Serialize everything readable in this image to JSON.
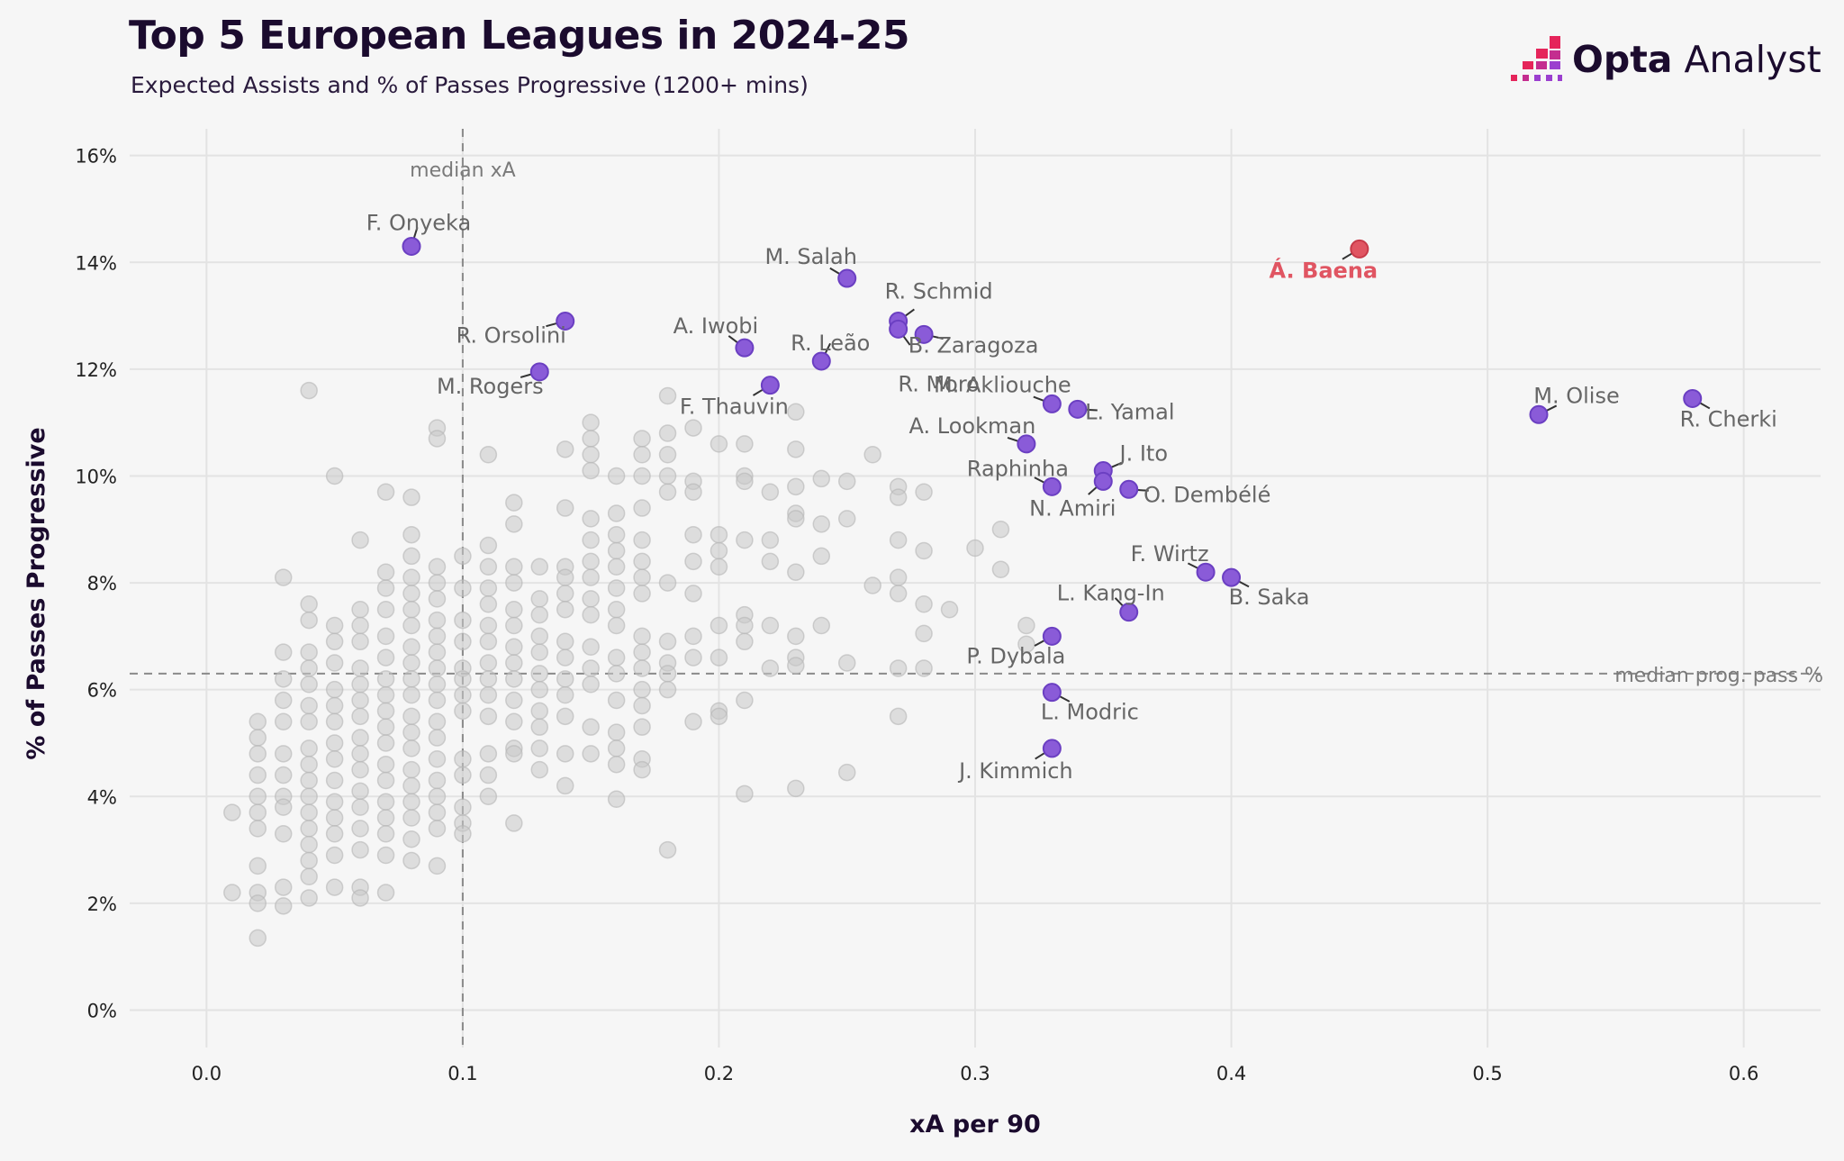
{
  "header": {
    "title": "Top 5 European Leagues in 2024-25",
    "subtitle": "Expected Assists and % of Passes Progressive (1200+ mins)",
    "logo_bold": "Opta",
    "logo_light": " Analyst"
  },
  "colors": {
    "background": "#f6f6f6",
    "highlight": "#8a5bd8",
    "highlight_edge": "#6b3fc2",
    "featured": "#e05562",
    "featured_edge": "#c73a49",
    "other": "#c8c8c8",
    "grid": "#e3e3e3",
    "logo_accent": "#e5245a",
    "logo_secondary": "#c42d8f"
  },
  "chart_data": {
    "type": "scatter",
    "title": "Top 5 European Leagues in 2024-25",
    "subtitle": "Expected Assists and % of Passes Progressive (1200+ mins)",
    "xlabel": "xA per 90",
    "ylabel": "% of Passes Progressive",
    "xlim": [
      -0.03,
      0.63
    ],
    "ylim": [
      -0.7,
      16.5
    ],
    "xticks": [
      0.0,
      0.1,
      0.2,
      0.3,
      0.4,
      0.5,
      0.6
    ],
    "xtick_labels": [
      "0.0",
      "0.1",
      "0.2",
      "0.3",
      "0.4",
      "0.5",
      "0.6"
    ],
    "yticks": [
      0,
      2,
      4,
      6,
      8,
      10,
      12,
      14,
      16
    ],
    "ytick_labels": [
      "0%",
      "2%",
      "4%",
      "6%",
      "8%",
      "10%",
      "12%",
      "14%",
      "16%"
    ],
    "grid": true,
    "reference_lines": [
      {
        "axis": "x",
        "value": 0.1,
        "label": "median xA"
      },
      {
        "axis": "y",
        "value": 6.3,
        "label": "median prog. pass %"
      }
    ],
    "featured": [
      {
        "name": "Á. Baena",
        "x": 0.45,
        "y": 14.25
      }
    ],
    "highlighted": [
      {
        "name": "F. Onyeka",
        "x": 0.08,
        "y": 14.3
      },
      {
        "name": "M. Salah",
        "x": 0.25,
        "y": 13.7
      },
      {
        "name": "R. Orsolini",
        "x": 0.14,
        "y": 12.9
      },
      {
        "name": "R. Schmid",
        "x": 0.27,
        "y": 12.9
      },
      {
        "name": "A. Iwobi",
        "x": 0.21,
        "y": 12.4
      },
      {
        "name": "B. Zaragoza",
        "x": 0.28,
        "y": 12.65
      },
      {
        "name": "R. Leão",
        "x": 0.24,
        "y": 12.15
      },
      {
        "name": "M. Rogers",
        "x": 0.13,
        "y": 11.95
      },
      {
        "name": "R. Moro",
        "x": 0.27,
        "y": 12.75
      },
      {
        "name": "F. Thauvin",
        "x": 0.22,
        "y": 11.7
      },
      {
        "name": "M. Akliouche",
        "x": 0.33,
        "y": 11.35
      },
      {
        "name": "L. Yamal",
        "x": 0.34,
        "y": 11.25
      },
      {
        "name": "M. Olise",
        "x": 0.52,
        "y": 11.15
      },
      {
        "name": "R. Cherki",
        "x": 0.58,
        "y": 11.45
      },
      {
        "name": "A. Lookman",
        "x": 0.32,
        "y": 10.6
      },
      {
        "name": "J. Ito",
        "x": 0.35,
        "y": 10.1
      },
      {
        "name": "Raphinha",
        "x": 0.33,
        "y": 9.8
      },
      {
        "name": "N. Amiri",
        "x": 0.35,
        "y": 9.9
      },
      {
        "name": "O. Dembélé",
        "x": 0.36,
        "y": 9.75
      },
      {
        "name": "F. Wirtz",
        "x": 0.39,
        "y": 8.2
      },
      {
        "name": "B. Saka",
        "x": 0.4,
        "y": 8.1
      },
      {
        "name": "L. Kang-In",
        "x": 0.36,
        "y": 7.45
      },
      {
        "name": "P. Dybala",
        "x": 0.33,
        "y": 7.0
      },
      {
        "name": "L. Modric",
        "x": 0.33,
        "y": 5.95
      },
      {
        "name": "J. Kimmich",
        "x": 0.33,
        "y": 4.9
      }
    ],
    "others": [
      [
        0.01,
        3.7
      ],
      [
        0.01,
        2.2
      ],
      [
        0.02,
        5.4
      ],
      [
        0.02,
        5.1
      ],
      [
        0.02,
        4.8
      ],
      [
        0.02,
        4.4
      ],
      [
        0.02,
        4.0
      ],
      [
        0.02,
        3.7
      ],
      [
        0.02,
        3.4
      ],
      [
        0.02,
        2.7
      ],
      [
        0.02,
        2.2
      ],
      [
        0.02,
        2.0
      ],
      [
        0.02,
        1.35
      ],
      [
        0.03,
        8.1
      ],
      [
        0.03,
        6.7
      ],
      [
        0.03,
        6.2
      ],
      [
        0.03,
        5.8
      ],
      [
        0.03,
        5.4
      ],
      [
        0.03,
        4.8
      ],
      [
        0.03,
        4.4
      ],
      [
        0.03,
        4.0
      ],
      [
        0.03,
        3.8
      ],
      [
        0.03,
        3.3
      ],
      [
        0.03,
        2.3
      ],
      [
        0.03,
        1.95
      ],
      [
        0.04,
        11.6
      ],
      [
        0.04,
        7.6
      ],
      [
        0.04,
        7.3
      ],
      [
        0.04,
        6.7
      ],
      [
        0.04,
        6.4
      ],
      [
        0.04,
        6.1
      ],
      [
        0.04,
        5.7
      ],
      [
        0.04,
        5.4
      ],
      [
        0.04,
        4.9
      ],
      [
        0.04,
        4.6
      ],
      [
        0.04,
        4.3
      ],
      [
        0.04,
        4.0
      ],
      [
        0.04,
        3.7
      ],
      [
        0.04,
        3.4
      ],
      [
        0.04,
        3.1
      ],
      [
        0.04,
        2.8
      ],
      [
        0.04,
        2.5
      ],
      [
        0.04,
        2.1
      ],
      [
        0.05,
        10.0
      ],
      [
        0.05,
        7.2
      ],
      [
        0.05,
        6.9
      ],
      [
        0.05,
        6.5
      ],
      [
        0.05,
        6.0
      ],
      [
        0.05,
        5.7
      ],
      [
        0.05,
        5.4
      ],
      [
        0.05,
        5.0
      ],
      [
        0.05,
        4.7
      ],
      [
        0.05,
        4.3
      ],
      [
        0.05,
        3.9
      ],
      [
        0.05,
        3.6
      ],
      [
        0.05,
        3.3
      ],
      [
        0.05,
        2.9
      ],
      [
        0.05,
        2.3
      ],
      [
        0.06,
        8.8
      ],
      [
        0.06,
        7.5
      ],
      [
        0.06,
        7.2
      ],
      [
        0.06,
        6.9
      ],
      [
        0.06,
        6.4
      ],
      [
        0.06,
        6.1
      ],
      [
        0.06,
        5.8
      ],
      [
        0.06,
        5.5
      ],
      [
        0.06,
        5.1
      ],
      [
        0.06,
        4.8
      ],
      [
        0.06,
        4.5
      ],
      [
        0.06,
        4.1
      ],
      [
        0.06,
        3.8
      ],
      [
        0.06,
        3.4
      ],
      [
        0.06,
        3.0
      ],
      [
        0.06,
        2.3
      ],
      [
        0.06,
        2.1
      ],
      [
        0.07,
        9.7
      ],
      [
        0.07,
        8.2
      ],
      [
        0.07,
        7.9
      ],
      [
        0.07,
        7.5
      ],
      [
        0.07,
        7.0
      ],
      [
        0.07,
        6.6
      ],
      [
        0.07,
        6.2
      ],
      [
        0.07,
        5.9
      ],
      [
        0.07,
        5.6
      ],
      [
        0.07,
        5.3
      ],
      [
        0.07,
        5.0
      ],
      [
        0.07,
        4.6
      ],
      [
        0.07,
        4.3
      ],
      [
        0.07,
        3.9
      ],
      [
        0.07,
        3.6
      ],
      [
        0.07,
        3.3
      ],
      [
        0.07,
        2.9
      ],
      [
        0.07,
        2.2
      ],
      [
        0.08,
        9.6
      ],
      [
        0.08,
        8.9
      ],
      [
        0.08,
        8.5
      ],
      [
        0.08,
        8.1
      ],
      [
        0.08,
        7.8
      ],
      [
        0.08,
        7.5
      ],
      [
        0.08,
        7.2
      ],
      [
        0.08,
        6.8
      ],
      [
        0.08,
        6.5
      ],
      [
        0.08,
        6.2
      ],
      [
        0.08,
        5.9
      ],
      [
        0.08,
        5.5
      ],
      [
        0.08,
        5.2
      ],
      [
        0.08,
        4.9
      ],
      [
        0.08,
        4.5
      ],
      [
        0.08,
        4.2
      ],
      [
        0.08,
        3.9
      ],
      [
        0.08,
        3.6
      ],
      [
        0.08,
        3.2
      ],
      [
        0.08,
        2.8
      ],
      [
        0.09,
        10.9
      ],
      [
        0.09,
        10.7
      ],
      [
        0.09,
        8.3
      ],
      [
        0.09,
        8.0
      ],
      [
        0.09,
        7.7
      ],
      [
        0.09,
        7.3
      ],
      [
        0.09,
        7.0
      ],
      [
        0.09,
        6.7
      ],
      [
        0.09,
        6.4
      ],
      [
        0.09,
        6.1
      ],
      [
        0.09,
        5.8
      ],
      [
        0.09,
        5.4
      ],
      [
        0.09,
        5.1
      ],
      [
        0.09,
        4.7
      ],
      [
        0.09,
        4.3
      ],
      [
        0.09,
        4.0
      ],
      [
        0.09,
        3.7
      ],
      [
        0.09,
        3.4
      ],
      [
        0.09,
        2.7
      ],
      [
        0.1,
        8.5
      ],
      [
        0.1,
        7.9
      ],
      [
        0.1,
        7.3
      ],
      [
        0.1,
        6.9
      ],
      [
        0.1,
        6.4
      ],
      [
        0.1,
        6.2
      ],
      [
        0.1,
        5.9
      ],
      [
        0.1,
        5.6
      ],
      [
        0.1,
        4.7
      ],
      [
        0.1,
        4.4
      ],
      [
        0.1,
        3.8
      ],
      [
        0.1,
        3.5
      ],
      [
        0.1,
        3.3
      ],
      [
        0.11,
        10.4
      ],
      [
        0.11,
        8.7
      ],
      [
        0.11,
        8.3
      ],
      [
        0.11,
        7.9
      ],
      [
        0.11,
        7.6
      ],
      [
        0.11,
        7.2
      ],
      [
        0.11,
        6.9
      ],
      [
        0.11,
        6.5
      ],
      [
        0.11,
        6.2
      ],
      [
        0.11,
        5.9
      ],
      [
        0.11,
        5.5
      ],
      [
        0.11,
        4.8
      ],
      [
        0.11,
        4.4
      ],
      [
        0.11,
        4.0
      ],
      [
        0.12,
        9.5
      ],
      [
        0.12,
        9.1
      ],
      [
        0.12,
        8.3
      ],
      [
        0.12,
        8.0
      ],
      [
        0.12,
        7.5
      ],
      [
        0.12,
        7.2
      ],
      [
        0.12,
        6.8
      ],
      [
        0.12,
        6.5
      ],
      [
        0.12,
        6.2
      ],
      [
        0.12,
        5.8
      ],
      [
        0.12,
        5.4
      ],
      [
        0.12,
        4.9
      ],
      [
        0.12,
        4.8
      ],
      [
        0.12,
        3.5
      ],
      [
        0.13,
        8.3
      ],
      [
        0.13,
        7.7
      ],
      [
        0.13,
        7.4
      ],
      [
        0.13,
        7.0
      ],
      [
        0.13,
        6.7
      ],
      [
        0.13,
        6.3
      ],
      [
        0.13,
        6.0
      ],
      [
        0.13,
        5.6
      ],
      [
        0.13,
        5.3
      ],
      [
        0.13,
        4.9
      ],
      [
        0.13,
        4.5
      ],
      [
        0.14,
        10.5
      ],
      [
        0.14,
        9.4
      ],
      [
        0.14,
        8.3
      ],
      [
        0.14,
        8.1
      ],
      [
        0.14,
        7.8
      ],
      [
        0.14,
        7.5
      ],
      [
        0.14,
        6.9
      ],
      [
        0.14,
        6.6
      ],
      [
        0.14,
        6.2
      ],
      [
        0.14,
        5.9
      ],
      [
        0.14,
        5.5
      ],
      [
        0.14,
        4.8
      ],
      [
        0.14,
        4.2
      ],
      [
        0.15,
        11.0
      ],
      [
        0.15,
        10.7
      ],
      [
        0.15,
        10.4
      ],
      [
        0.15,
        10.1
      ],
      [
        0.15,
        9.2
      ],
      [
        0.15,
        8.8
      ],
      [
        0.15,
        8.4
      ],
      [
        0.15,
        8.1
      ],
      [
        0.15,
        7.7
      ],
      [
        0.15,
        7.4
      ],
      [
        0.15,
        6.8
      ],
      [
        0.15,
        6.4
      ],
      [
        0.15,
        6.1
      ],
      [
        0.15,
        5.3
      ],
      [
        0.15,
        4.8
      ],
      [
        0.16,
        10.0
      ],
      [
        0.16,
        9.3
      ],
      [
        0.16,
        8.9
      ],
      [
        0.16,
        8.6
      ],
      [
        0.16,
        8.3
      ],
      [
        0.16,
        7.9
      ],
      [
        0.16,
        7.5
      ],
      [
        0.16,
        7.2
      ],
      [
        0.16,
        6.6
      ],
      [
        0.16,
        6.3
      ],
      [
        0.16,
        5.8
      ],
      [
        0.16,
        5.2
      ],
      [
        0.16,
        4.9
      ],
      [
        0.16,
        4.6
      ],
      [
        0.16,
        3.95
      ],
      [
        0.17,
        10.7
      ],
      [
        0.17,
        10.4
      ],
      [
        0.17,
        10.0
      ],
      [
        0.17,
        9.4
      ],
      [
        0.17,
        8.8
      ],
      [
        0.17,
        8.4
      ],
      [
        0.17,
        8.1
      ],
      [
        0.17,
        7.8
      ],
      [
        0.17,
        7.0
      ],
      [
        0.17,
        6.7
      ],
      [
        0.17,
        6.4
      ],
      [
        0.17,
        6.0
      ],
      [
        0.17,
        5.7
      ],
      [
        0.17,
        5.3
      ],
      [
        0.17,
        4.7
      ],
      [
        0.17,
        4.5
      ],
      [
        0.18,
        11.5
      ],
      [
        0.18,
        10.8
      ],
      [
        0.18,
        10.4
      ],
      [
        0.18,
        10.0
      ],
      [
        0.18,
        9.7
      ],
      [
        0.18,
        8.0
      ],
      [
        0.18,
        6.9
      ],
      [
        0.18,
        6.5
      ],
      [
        0.18,
        6.3
      ],
      [
        0.18,
        6.0
      ],
      [
        0.18,
        3.0
      ],
      [
        0.19,
        10.9
      ],
      [
        0.19,
        9.9
      ],
      [
        0.19,
        9.7
      ],
      [
        0.19,
        8.9
      ],
      [
        0.19,
        8.4
      ],
      [
        0.19,
        7.8
      ],
      [
        0.19,
        7.0
      ],
      [
        0.19,
        6.6
      ],
      [
        0.19,
        5.4
      ],
      [
        0.2,
        10.6
      ],
      [
        0.2,
        8.9
      ],
      [
        0.2,
        8.6
      ],
      [
        0.2,
        8.3
      ],
      [
        0.2,
        7.2
      ],
      [
        0.2,
        6.6
      ],
      [
        0.2,
        5.6
      ],
      [
        0.2,
        5.5
      ],
      [
        0.21,
        10.6
      ],
      [
        0.21,
        10.0
      ],
      [
        0.21,
        9.9
      ],
      [
        0.21,
        8.8
      ],
      [
        0.21,
        7.4
      ],
      [
        0.21,
        7.2
      ],
      [
        0.21,
        6.9
      ],
      [
        0.21,
        5.8
      ],
      [
        0.21,
        4.05
      ],
      [
        0.22,
        9.7
      ],
      [
        0.22,
        8.8
      ],
      [
        0.22,
        8.4
      ],
      [
        0.22,
        7.2
      ],
      [
        0.22,
        6.4
      ],
      [
        0.23,
        11.2
      ],
      [
        0.23,
        10.5
      ],
      [
        0.23,
        9.8
      ],
      [
        0.23,
        9.3
      ],
      [
        0.23,
        9.2
      ],
      [
        0.23,
        8.2
      ],
      [
        0.23,
        7.0
      ],
      [
        0.23,
        6.6
      ],
      [
        0.23,
        6.45
      ],
      [
        0.23,
        4.15
      ],
      [
        0.24,
        9.95
      ],
      [
        0.24,
        9.1
      ],
      [
        0.24,
        8.5
      ],
      [
        0.24,
        7.2
      ],
      [
        0.25,
        9.9
      ],
      [
        0.25,
        9.2
      ],
      [
        0.25,
        6.5
      ],
      [
        0.25,
        4.45
      ],
      [
        0.26,
        10.4
      ],
      [
        0.26,
        7.95
      ],
      [
        0.27,
        9.8
      ],
      [
        0.27,
        9.6
      ],
      [
        0.27,
        8.8
      ],
      [
        0.27,
        8.1
      ],
      [
        0.27,
        7.8
      ],
      [
        0.27,
        6.4
      ],
      [
        0.27,
        5.5
      ],
      [
        0.28,
        9.7
      ],
      [
        0.28,
        8.6
      ],
      [
        0.28,
        7.6
      ],
      [
        0.28,
        7.05
      ],
      [
        0.28,
        6.4
      ],
      [
        0.29,
        7.5
      ],
      [
        0.3,
        8.65
      ],
      [
        0.31,
        9.0
      ],
      [
        0.31,
        8.25
      ],
      [
        0.32,
        7.2
      ],
      [
        0.32,
        6.85
      ]
    ]
  }
}
